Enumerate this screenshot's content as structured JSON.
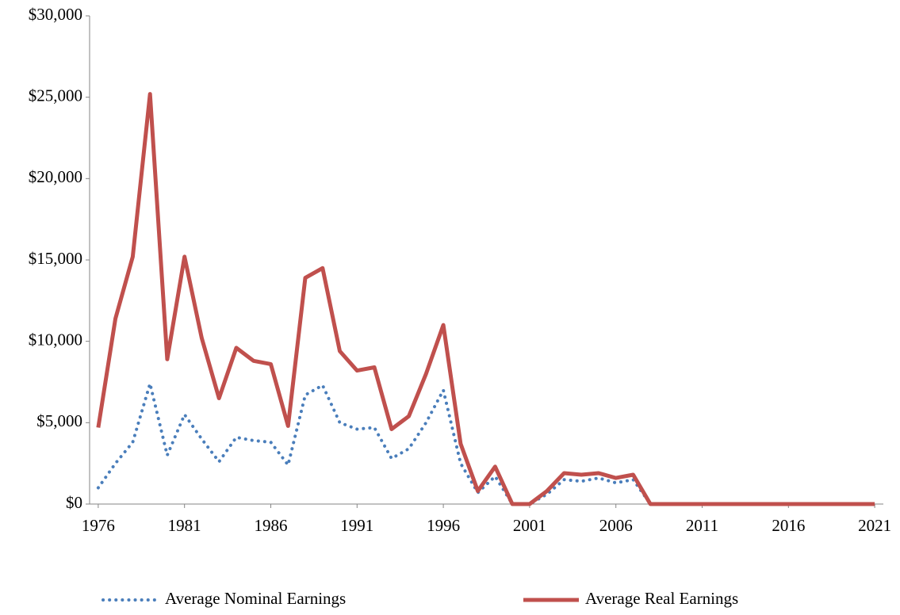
{
  "chart_data": {
    "type": "line",
    "x": [
      1976,
      1977,
      1978,
      1979,
      1980,
      1981,
      1982,
      1983,
      1984,
      1985,
      1986,
      1987,
      1988,
      1989,
      1990,
      1991,
      1992,
      1993,
      1994,
      1995,
      1996,
      1997,
      1998,
      1999,
      2000,
      2001,
      2002,
      2003,
      2004,
      2005,
      2006,
      2007,
      2008,
      2009,
      2010,
      2011,
      2012,
      2013,
      2014,
      2015,
      2016,
      2017,
      2018,
      2019,
      2020,
      2021
    ],
    "series": [
      {
        "name": "Average Nominal Earnings",
        "color": "#4a7ebb",
        "style": "dotted",
        "values": [
          1000,
          2500,
          3800,
          7400,
          3000,
          5500,
          4000,
          2600,
          4100,
          3900,
          3800,
          2400,
          6700,
          7300,
          5000,
          4600,
          4700,
          2800,
          3400,
          5000,
          7000,
          2500,
          700,
          1700,
          0,
          0,
          600,
          1500,
          1400,
          1600,
          1300,
          1500,
          0,
          0,
          0,
          0,
          0,
          0,
          0,
          0,
          0,
          0,
          0,
          0,
          0,
          0
        ]
      },
      {
        "name": "Average Real Earnings",
        "color": "#c0504d",
        "style": "solid",
        "values": [
          4700,
          11400,
          15200,
          25200,
          8900,
          15200,
          10200,
          6500,
          9600,
          8800,
          8600,
          4800,
          13900,
          14500,
          9400,
          8200,
          8400,
          4600,
          5400,
          8000,
          11000,
          3700,
          800,
          2300,
          0,
          0,
          800,
          1900,
          1800,
          1900,
          1600,
          1800,
          0,
          0,
          0,
          0,
          0,
          0,
          0,
          0,
          0,
          0,
          0,
          0,
          0,
          0
        ]
      }
    ],
    "xlim": [
      1975.5,
      2021.5
    ],
    "xticks": [
      1976,
      1981,
      1986,
      1991,
      1996,
      2001,
      2006,
      2011,
      2016,
      2021
    ],
    "ylim": [
      0,
      30000
    ],
    "yticks": [
      {
        "value": 0,
        "label": "$0"
      },
      {
        "value": 5000,
        "label": "$5,000"
      },
      {
        "value": 10000,
        "label": "$10,000"
      },
      {
        "value": 15000,
        "label": "$15,000"
      },
      {
        "value": 20000,
        "label": "$20,000"
      },
      {
        "value": 25000,
        "label": "$25,000"
      },
      {
        "value": 30000,
        "label": "$30,000"
      }
    ],
    "grid": false,
    "legend": "bottom"
  }
}
